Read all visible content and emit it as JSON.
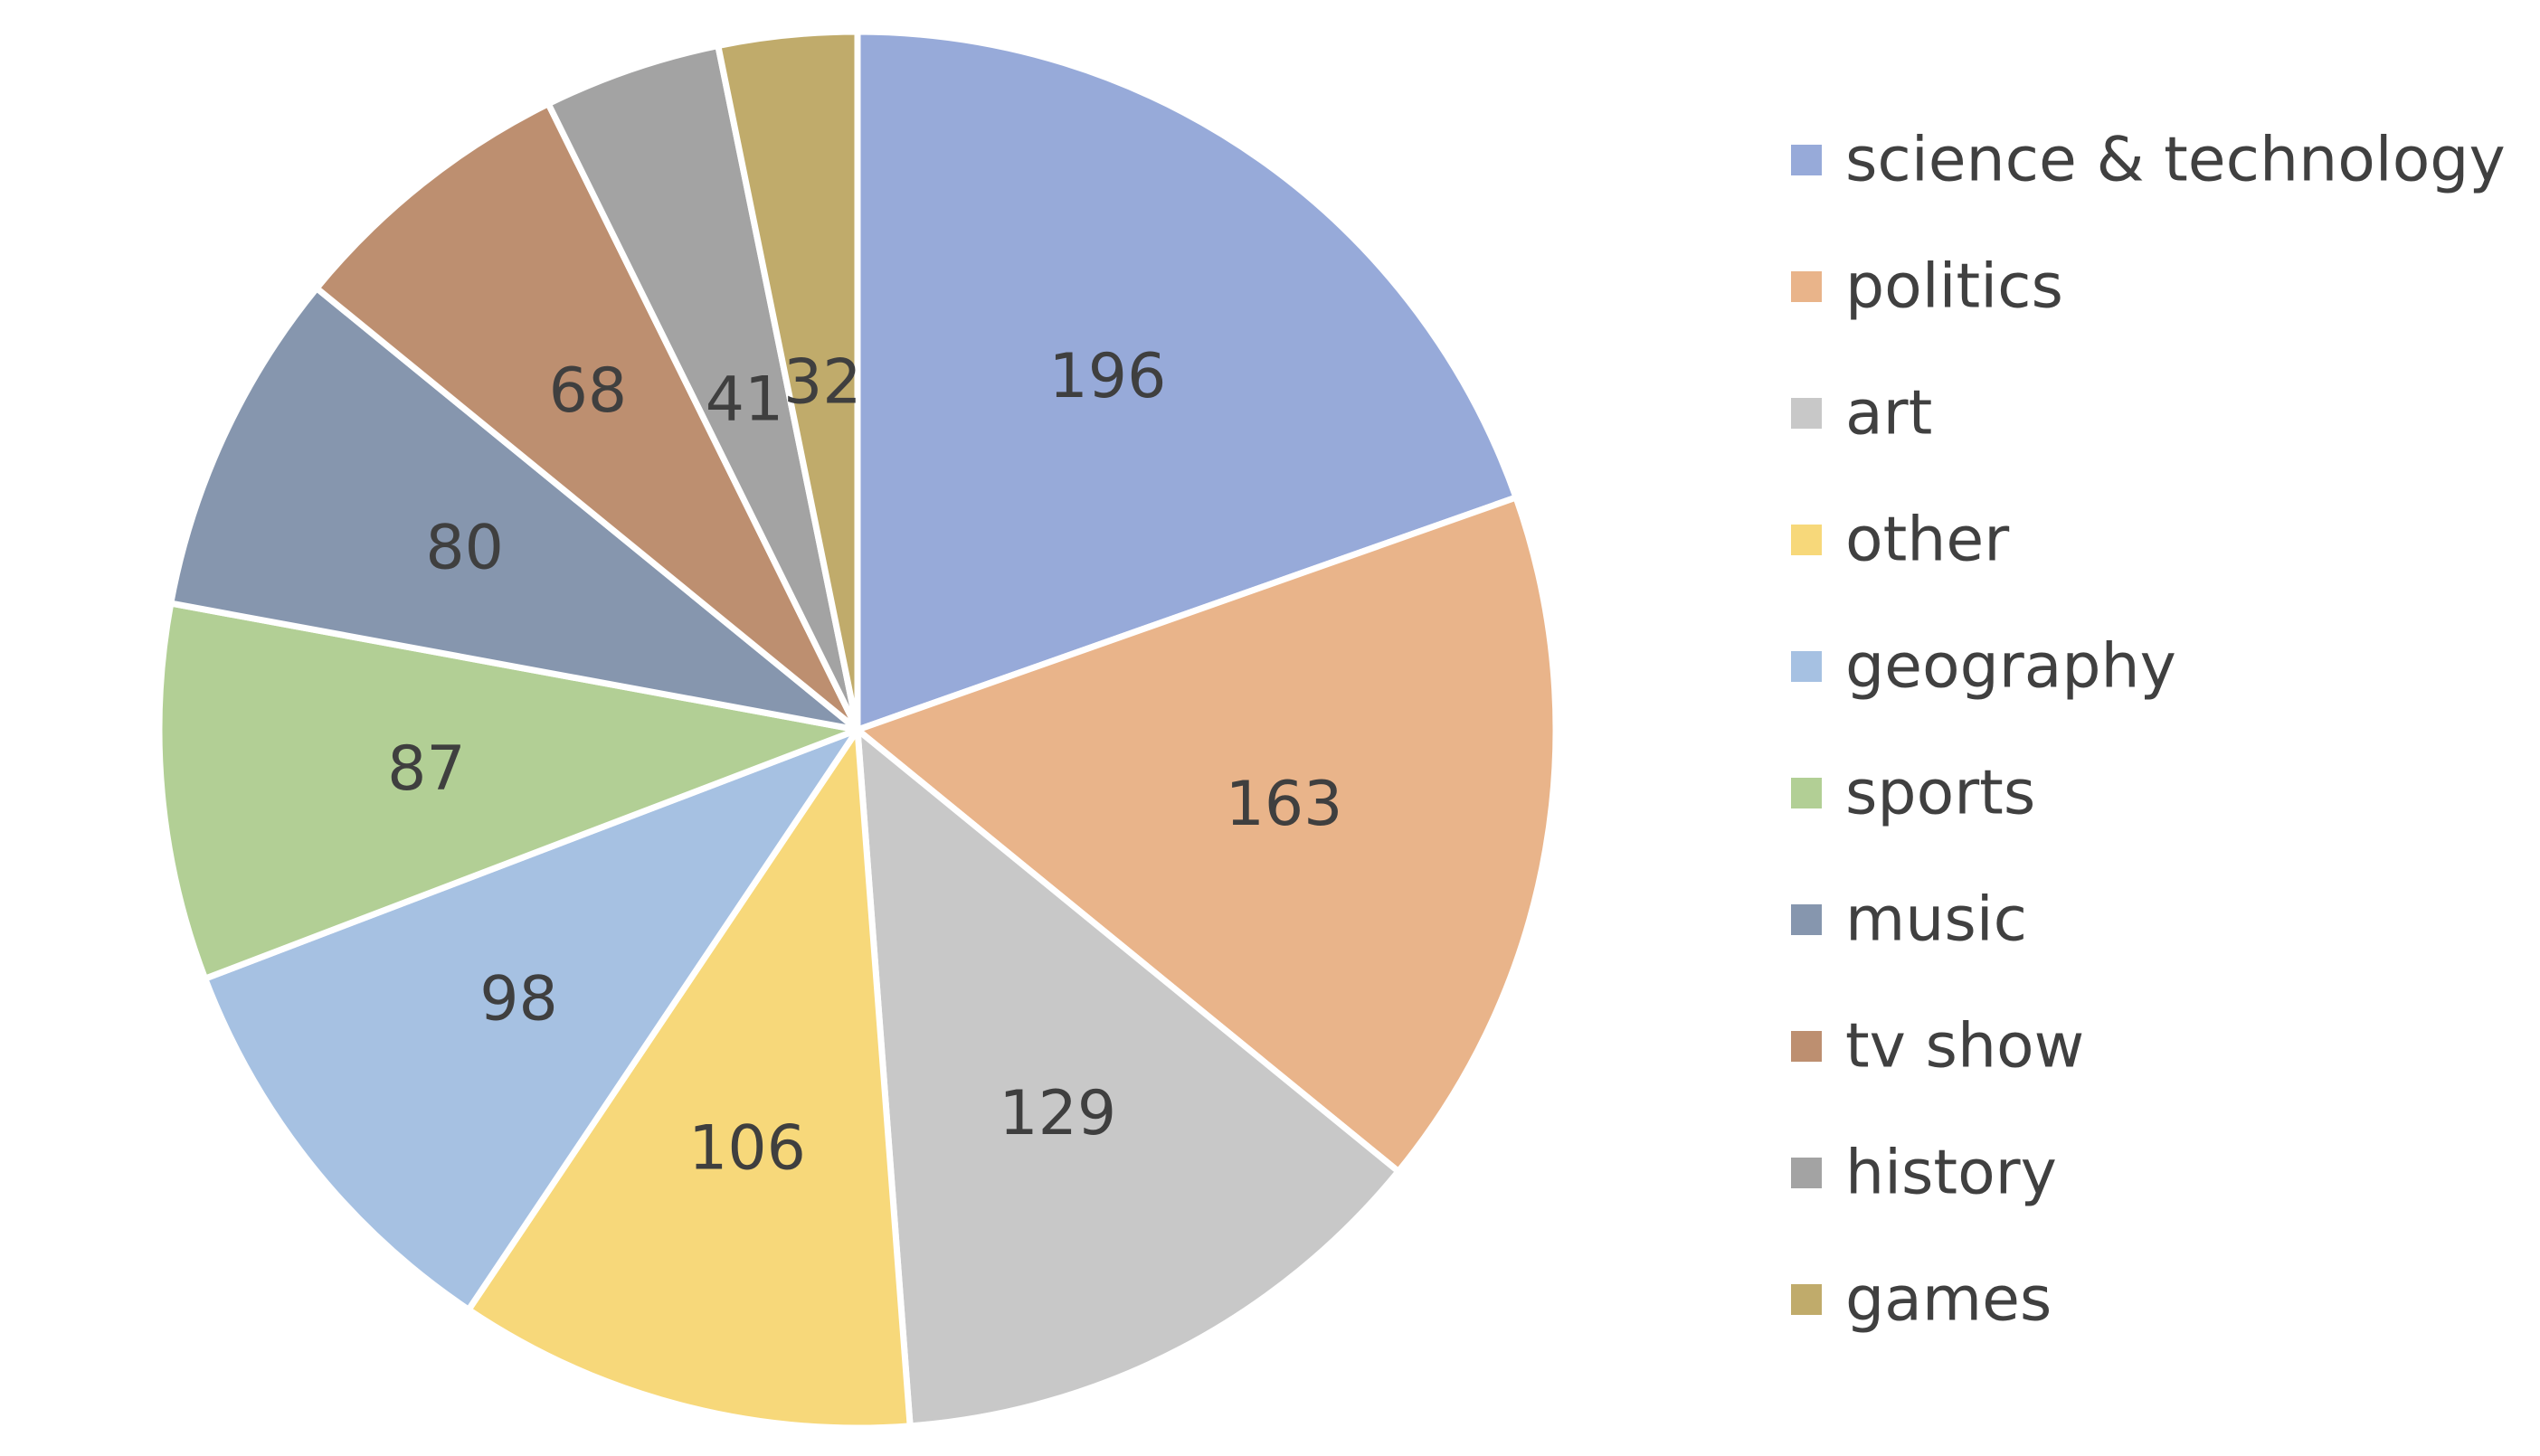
{
  "chart_data": {
    "type": "pie",
    "categories": [
      "science & technology",
      "politics",
      "art",
      "other",
      "geography",
      "sports",
      "music",
      "tv show",
      "history",
      "games"
    ],
    "values": [
      196,
      163,
      129,
      106,
      98,
      87,
      80,
      68,
      41,
      32
    ],
    "colors": [
      "#97aad9",
      "#e9b48a",
      "#c8c8c8",
      "#f7d87a",
      "#a6c1e2",
      "#b2cf95",
      "#8696ae",
      "#bd8f70",
      "#a3a3a3",
      "#c0ab6b"
    ],
    "data_labels": true,
    "legend_position": "right",
    "start_angle_degrees": 0,
    "direction": "clockwise"
  }
}
